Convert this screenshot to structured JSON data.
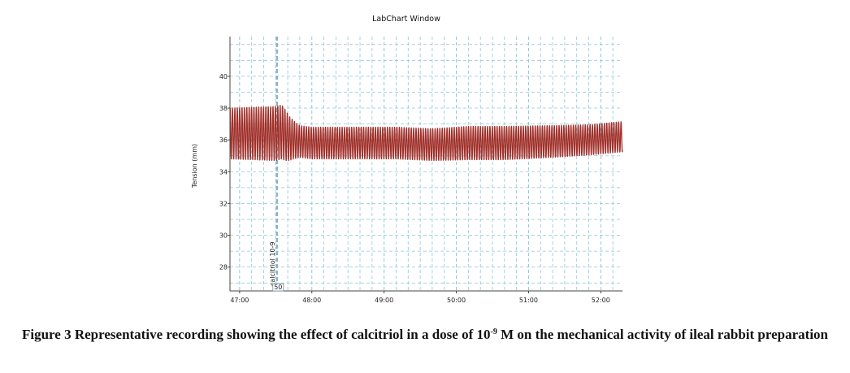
{
  "chart_data": {
    "type": "line",
    "title": "LabChart Window",
    "xlabel": "",
    "ylabel": "Tension (mm)",
    "xlim": [
      "46:52",
      "52:18"
    ],
    "ylim": [
      26.5,
      42.5
    ],
    "x_ticks": [
      "47:00",
      "48:00",
      "49:00",
      "50:00",
      "51:00",
      "52:00"
    ],
    "y_ticks": [
      28,
      30,
      32,
      34,
      36,
      38,
      40
    ],
    "grid": true,
    "line_color": "#a0302a",
    "grid_color": "#8ec6d8",
    "series": [
      {
        "sample_times": [
          "46:52",
          "47:30",
          "47:35",
          "47:38",
          "47:41",
          "47:45",
          "47:50",
          "48:00",
          "48:30",
          "49:10",
          "49:40",
          "50:10",
          "50:40",
          "51:20",
          "51:50",
          "52:18"
        ],
        "baseline": [
          36.4,
          36.4,
          36.5,
          36.3,
          36.1,
          36.0,
          35.9,
          35.8,
          35.8,
          35.8,
          35.7,
          35.8,
          35.8,
          35.9,
          36.0,
          36.2
        ],
        "amplitude": [
          1.6,
          1.7,
          1.7,
          1.6,
          1.4,
          1.2,
          1.0,
          1.0,
          1.0,
          1.0,
          1.0,
          1.05,
          1.05,
          1.0,
          0.95,
          0.95
        ],
        "oscillation_period_s": 1.98
      }
    ],
    "annotations": [
      {
        "label": "calcitriol 10-9",
        "marker": "50",
        "time": "47:31"
      }
    ]
  },
  "caption": {
    "prefix": "Figure 3 Representative recording showing the effect of calcitriol in a dose of 10",
    "exponent": "-9",
    "suffix": " M on the mechanical activity of ileal rabbit preparation"
  }
}
